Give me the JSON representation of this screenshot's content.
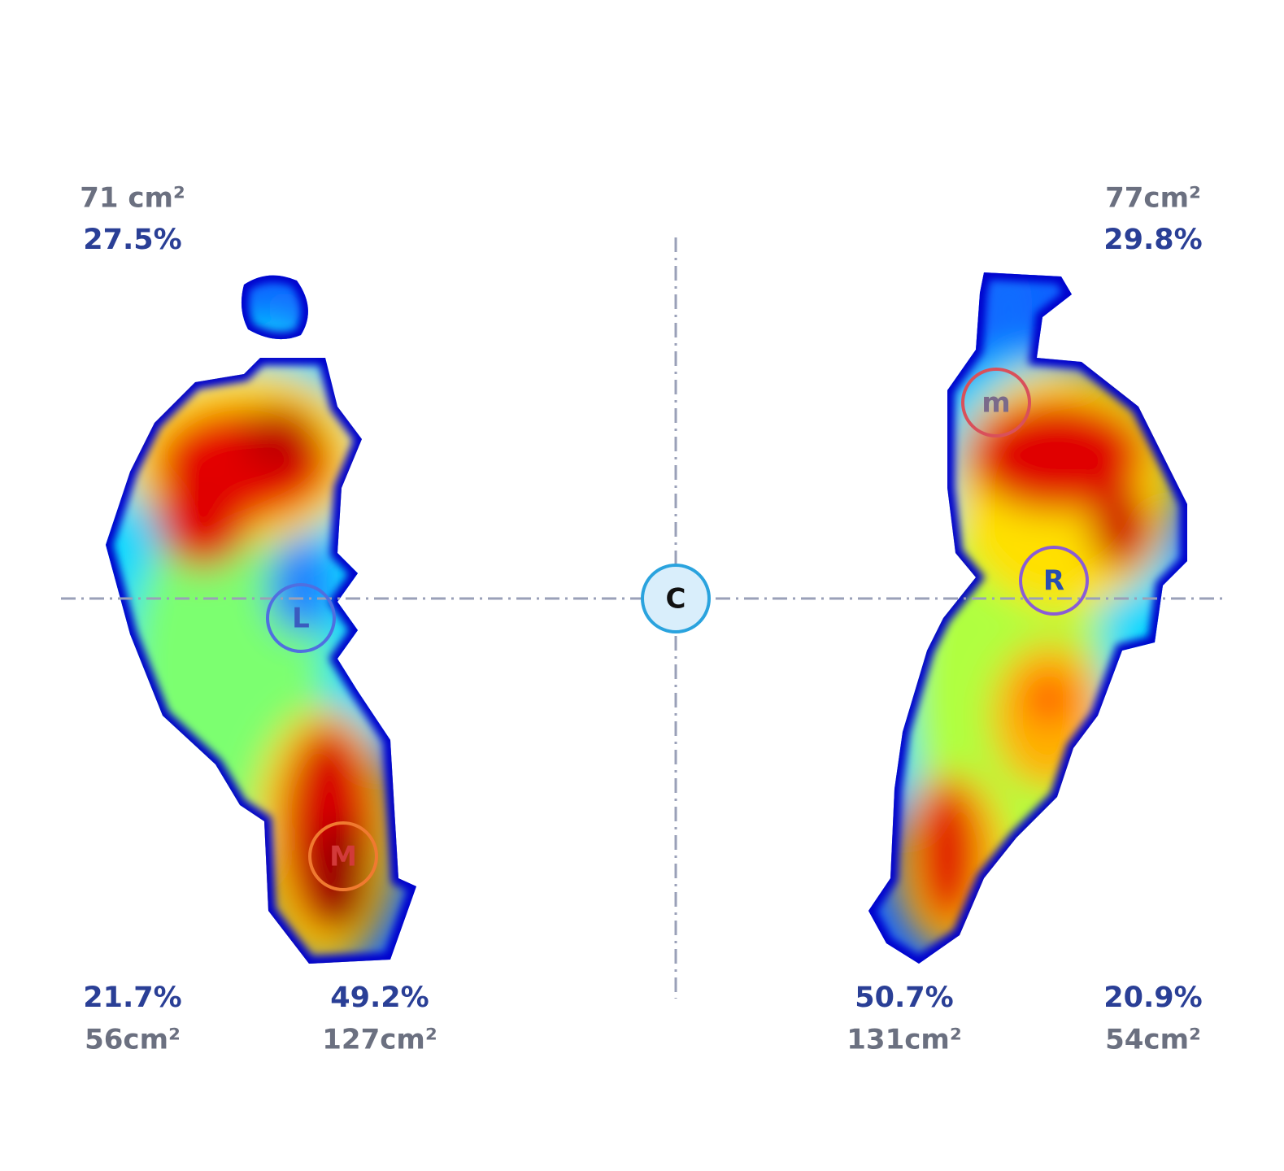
{
  "quadrants": [
    {
      "area": "71 cm²",
      "percent": "27.5%"
    },
    {
      "area": "77cm²",
      "percent": "29.8%"
    },
    {
      "area": "56cm²",
      "percent": "21.7%"
    },
    {
      "area": "127cm²",
      "percent": "49.2%"
    },
    {
      "area": "131cm²",
      "percent": "50.7%"
    },
    {
      "area": "54cm²",
      "percent": "20.9%"
    }
  ],
  "center_label": "C",
  "markers": [
    {
      "label": "L"
    },
    {
      "label": "M"
    },
    {
      "label": "m"
    },
    {
      "label": "R"
    }
  ]
}
